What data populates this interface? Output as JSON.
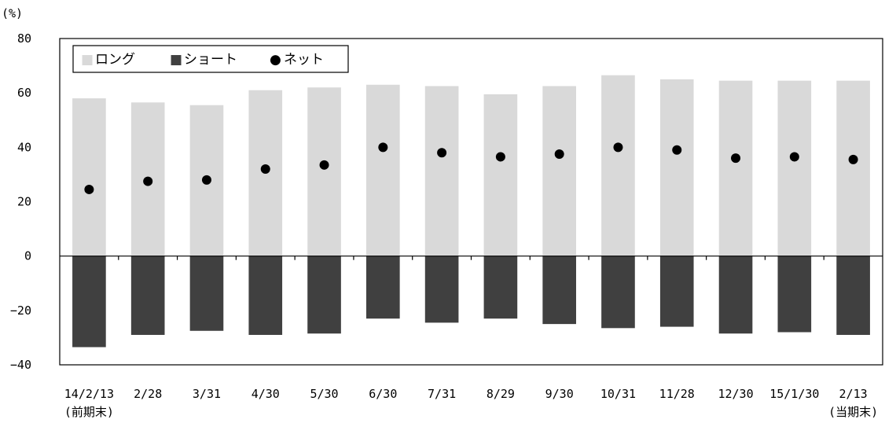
{
  "chart_data": {
    "type": "bar",
    "unit_label": "(%)",
    "categories": [
      "14/2/13",
      "2/28",
      "3/31",
      "4/30",
      "5/30",
      "6/30",
      "7/31",
      "8/29",
      "9/30",
      "10/31",
      "11/28",
      "12/30",
      "15/1/30",
      "2/13"
    ],
    "category_sublabels": [
      "(前期末)",
      "",
      "",
      "",
      "",
      "",
      "",
      "",
      "",
      "",
      "",
      "",
      "",
      "(当期末)"
    ],
    "series": [
      {
        "name": "ロング",
        "kind": "bar",
        "color": "#d9d9d9",
        "values": [
          58,
          56.5,
          55.5,
          61,
          62,
          63,
          62.5,
          59.5,
          62.5,
          66.5,
          65,
          64.5,
          64.5,
          64.5
        ]
      },
      {
        "name": "ショート",
        "kind": "bar",
        "color": "#404040",
        "values": [
          -33.5,
          -29,
          -27.5,
          -29,
          -28.5,
          -23,
          -24.5,
          -23,
          -25,
          -26.5,
          -26,
          -28.5,
          -28,
          -29
        ]
      },
      {
        "name": "ネット",
        "kind": "marker",
        "color": "#000000",
        "values": [
          24.5,
          27.5,
          28,
          32,
          33.5,
          40,
          38,
          36.5,
          37.5,
          40,
          39,
          36,
          36.5,
          35.5
        ]
      }
    ],
    "yticks": [
      80,
      60,
      40,
      20,
      0,
      -20,
      -40
    ],
    "ytick_labels": [
      "80",
      "60",
      "40",
      "20",
      "0",
      "−20",
      "−40"
    ],
    "ylim": [
      -40,
      80
    ],
    "grid": false,
    "legend_position": "top-left",
    "legend_markers": {
      "bar": "■",
      "marker": "●"
    }
  }
}
